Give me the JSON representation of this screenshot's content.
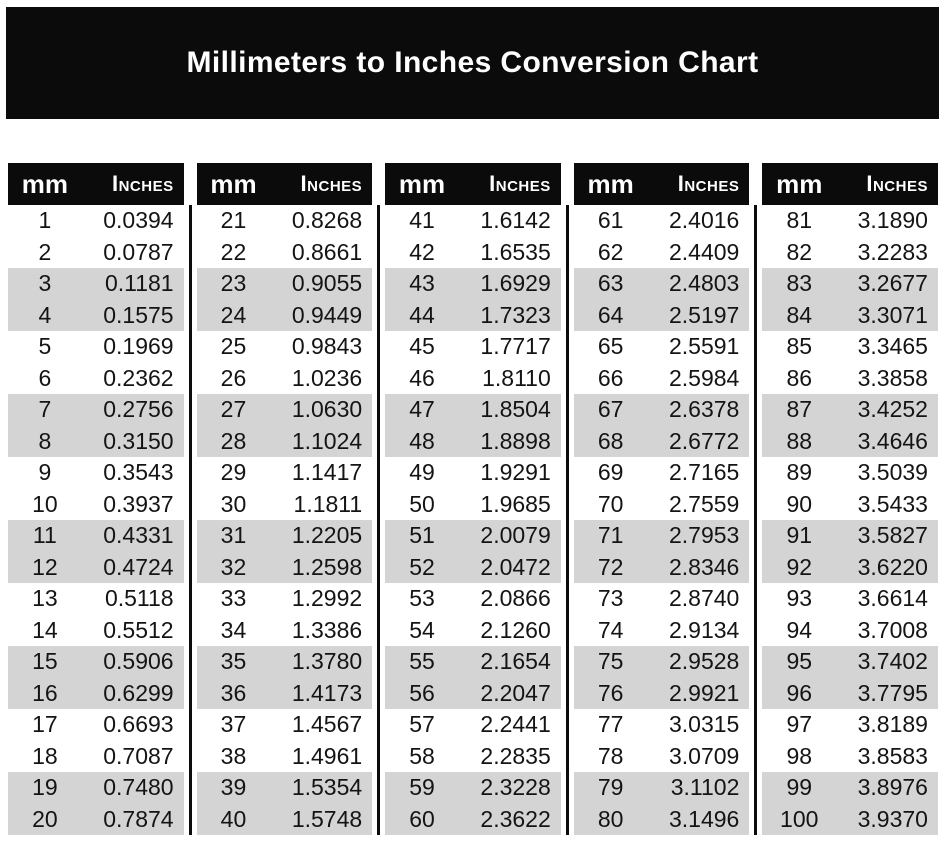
{
  "title": "Millimeters to Inches Conversion Chart",
  "colors": {
    "banner_bg": "#0b0b0b",
    "header_bg": "#0b0b0b",
    "separator": "#0b0b0b",
    "row_shaded": "#d4d4d4",
    "title_color": "#ffffff",
    "text": "#141414"
  },
  "tables": [
    {
      "mm_header": "mm",
      "inches_header": "Inches",
      "rows": [
        [
          "1",
          "0.0394"
        ],
        [
          "2",
          "0.0787"
        ],
        [
          "3",
          "0.1181"
        ],
        [
          "4",
          "0.1575"
        ],
        [
          "5",
          "0.1969"
        ],
        [
          "6",
          "0.2362"
        ],
        [
          "7",
          "0.2756"
        ],
        [
          "8",
          "0.3150"
        ],
        [
          "9",
          "0.3543"
        ],
        [
          "10",
          "0.3937"
        ],
        [
          "11",
          "0.4331"
        ],
        [
          "12",
          "0.4724"
        ],
        [
          "13",
          "0.5118"
        ],
        [
          "14",
          "0.5512"
        ],
        [
          "15",
          "0.5906"
        ],
        [
          "16",
          "0.6299"
        ],
        [
          "17",
          "0.6693"
        ],
        [
          "18",
          "0.7087"
        ],
        [
          "19",
          "0.7480"
        ],
        [
          "20",
          "0.7874"
        ]
      ]
    },
    {
      "mm_header": "mm",
      "inches_header": "Inches",
      "rows": [
        [
          "21",
          "0.8268"
        ],
        [
          "22",
          "0.8661"
        ],
        [
          "23",
          "0.9055"
        ],
        [
          "24",
          "0.9449"
        ],
        [
          "25",
          "0.9843"
        ],
        [
          "26",
          "1.0236"
        ],
        [
          "27",
          "1.0630"
        ],
        [
          "28",
          "1.1024"
        ],
        [
          "29",
          "1.1417"
        ],
        [
          "30",
          "1.1811"
        ],
        [
          "31",
          "1.2205"
        ],
        [
          "32",
          "1.2598"
        ],
        [
          "33",
          "1.2992"
        ],
        [
          "34",
          "1.3386"
        ],
        [
          "35",
          "1.3780"
        ],
        [
          "36",
          "1.4173"
        ],
        [
          "37",
          "1.4567"
        ],
        [
          "38",
          "1.4961"
        ],
        [
          "39",
          "1.5354"
        ],
        [
          "40",
          "1.5748"
        ]
      ]
    },
    {
      "mm_header": "mm",
      "inches_header": "Inches",
      "rows": [
        [
          "41",
          "1.6142"
        ],
        [
          "42",
          "1.6535"
        ],
        [
          "43",
          "1.6929"
        ],
        [
          "44",
          "1.7323"
        ],
        [
          "45",
          "1.7717"
        ],
        [
          "46",
          "1.8110"
        ],
        [
          "47",
          "1.8504"
        ],
        [
          "48",
          "1.8898"
        ],
        [
          "49",
          "1.9291"
        ],
        [
          "50",
          "1.9685"
        ],
        [
          "51",
          "2.0079"
        ],
        [
          "52",
          "2.0472"
        ],
        [
          "53",
          "2.0866"
        ],
        [
          "54",
          "2.1260"
        ],
        [
          "55",
          "2.1654"
        ],
        [
          "56",
          "2.2047"
        ],
        [
          "57",
          "2.2441"
        ],
        [
          "58",
          "2.2835"
        ],
        [
          "59",
          "2.3228"
        ],
        [
          "60",
          "2.3622"
        ]
      ]
    },
    {
      "mm_header": "mm",
      "inches_header": "Inches",
      "rows": [
        [
          "61",
          "2.4016"
        ],
        [
          "62",
          "2.4409"
        ],
        [
          "63",
          "2.4803"
        ],
        [
          "64",
          "2.5197"
        ],
        [
          "65",
          "2.5591"
        ],
        [
          "66",
          "2.5984"
        ],
        [
          "67",
          "2.6378"
        ],
        [
          "68",
          "2.6772"
        ],
        [
          "69",
          "2.7165"
        ],
        [
          "70",
          "2.7559"
        ],
        [
          "71",
          "2.7953"
        ],
        [
          "72",
          "2.8346"
        ],
        [
          "73",
          "2.8740"
        ],
        [
          "74",
          "2.9134"
        ],
        [
          "75",
          "2.9528"
        ],
        [
          "76",
          "2.9921"
        ],
        [
          "77",
          "3.0315"
        ],
        [
          "78",
          "3.0709"
        ],
        [
          "79",
          "3.1102"
        ],
        [
          "80",
          "3.1496"
        ]
      ]
    },
    {
      "mm_header": "mm",
      "inches_header": "Inches",
      "rows": [
        [
          "81",
          "3.1890"
        ],
        [
          "82",
          "3.2283"
        ],
        [
          "83",
          "3.2677"
        ],
        [
          "84",
          "3.3071"
        ],
        [
          "85",
          "3.3465"
        ],
        [
          "86",
          "3.3858"
        ],
        [
          "87",
          "3.4252"
        ],
        [
          "88",
          "3.4646"
        ],
        [
          "89",
          "3.5039"
        ],
        [
          "90",
          "3.5433"
        ],
        [
          "91",
          "3.5827"
        ],
        [
          "92",
          "3.6220"
        ],
        [
          "93",
          "3.6614"
        ],
        [
          "94",
          "3.7008"
        ],
        [
          "95",
          "3.7402"
        ],
        [
          "96",
          "3.7795"
        ],
        [
          "97",
          "3.8189"
        ],
        [
          "98",
          "3.8583"
        ],
        [
          "99",
          "3.8976"
        ],
        [
          "100",
          "3.9370"
        ]
      ]
    }
  ]
}
